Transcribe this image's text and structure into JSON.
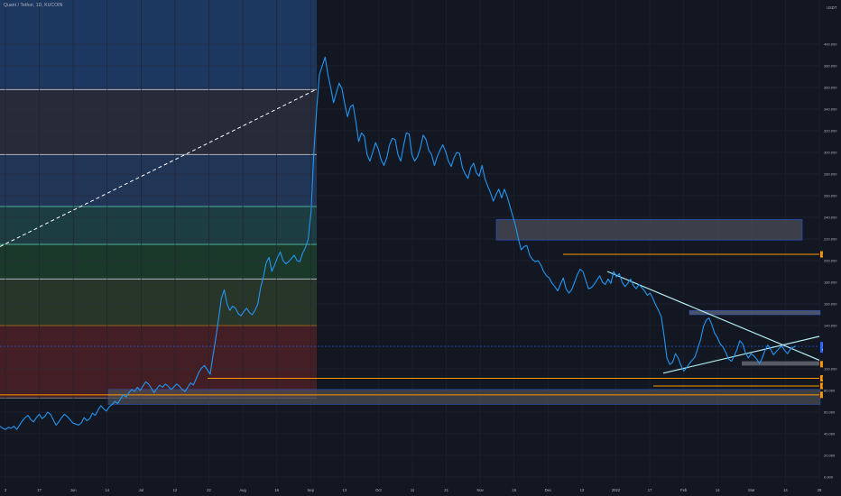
{
  "header": {
    "symbol_title": "Quant / Tethor, 1D, KUCOIN"
  },
  "chart_data": {
    "type": "line",
    "currency_label": "USDT",
    "y_ticks": [
      "400.000",
      "380.000",
      "360.000",
      "340.000",
      "320.000",
      "300.000",
      "280.000",
      "260.000",
      "240.000",
      "220.000",
      "200.000",
      "180.000",
      "160.000",
      "140.000",
      "100.000",
      "80.000",
      "60.000",
      "40.000",
      "20.000",
      "0.000"
    ],
    "x_ticks": [
      "3",
      "17",
      "Jun",
      "14",
      "Jul",
      "12",
      "22",
      "Aug",
      "16",
      "Sep",
      "13",
      "Oct",
      "11",
      "21",
      "Nov",
      "15",
      "Dec",
      "13",
      "2022",
      "17",
      "Feb",
      "14",
      "Mar",
      "14",
      "28"
    ],
    "price_labels": {
      "resistance": "205.809",
      "current": "120.800",
      "countdown": "00:59:71",
      "support": "104.326",
      "level_a": "91.224",
      "level_b": "84.214",
      "level_c": "75.978"
    },
    "levels": [
      205.809,
      120.8,
      104.326,
      91.224,
      84.214,
      75.978
    ],
    "fib_levels": [
      358,
      298,
      250,
      215,
      183,
      140,
      73
    ],
    "series": [
      {
        "values": [
          47,
          45,
          44,
          46,
          45,
          47,
          44,
          48,
          52,
          55,
          57,
          53,
          51,
          55,
          58,
          54,
          56,
          60,
          58,
          53,
          48,
          51,
          55,
          58,
          56,
          53,
          50,
          49,
          48,
          50,
          55,
          52,
          54,
          59,
          57,
          62,
          66,
          63,
          61,
          65,
          67,
          70,
          68,
          72,
          76,
          74,
          78,
          81,
          79,
          83,
          80,
          84,
          88,
          86,
          82,
          78,
          82,
          85,
          83,
          86,
          84,
          81,
          83,
          86,
          84,
          81,
          79,
          83,
          87,
          85,
          91,
          97,
          101,
          103,
          99,
          95,
          112,
          128,
          146,
          165,
          173,
          160,
          154,
          158,
          156,
          151,
          149,
          153,
          156,
          152,
          150,
          154,
          160,
          175,
          185,
          198,
          203,
          190,
          196,
          203,
          208,
          200,
          197,
          199,
          202,
          205,
          200,
          199,
          207,
          212,
          220,
          245,
          300,
          340,
          372,
          380,
          388,
          372,
          360,
          346,
          355,
          364,
          359,
          345,
          333,
          342,
          344,
          328,
          310,
          318,
          315,
          298,
          292,
          300,
          309,
          303,
          293,
          288,
          295,
          307,
          313,
          312,
          298,
          292,
          306,
          318,
          317,
          298,
          292,
          296,
          304,
          316,
          312,
          302,
          298,
          288,
          296,
          302,
          307,
          301,
          292,
          287,
          295,
          300,
          299,
          286,
          280,
          276,
          286,
          290,
          281,
          278,
          288,
          276,
          269,
          263,
          255,
          261,
          266,
          258,
          266,
          259,
          250,
          241,
          232,
          220,
          210,
          213,
          214,
          205,
          201,
          199,
          200,
          196,
          190,
          186,
          184,
          179,
          176,
          172,
          178,
          184,
          174,
          170,
          173,
          180,
          187,
          192,
          190,
          182,
          174,
          175,
          178,
          182,
          186,
          180,
          178,
          183,
          179,
          190,
          185,
          188,
          180,
          176,
          179,
          183,
          177,
          174,
          178,
          175,
          172,
          168,
          170,
          165,
          159,
          154,
          148,
          130,
          110,
          104,
          106,
          114,
          110,
          103,
          98,
          101,
          105,
          108,
          111,
          119,
          127,
          139,
          145,
          147,
          141,
          133,
          129,
          123,
          120,
          115,
          109,
          107,
          112,
          118,
          126,
          123,
          115,
          110,
          114,
          112,
          109,
          105,
          110,
          117,
          122,
          118,
          113,
          116,
          119,
          121,
          117,
          114,
          118,
          120,
          121
        ]
      }
    ]
  }
}
